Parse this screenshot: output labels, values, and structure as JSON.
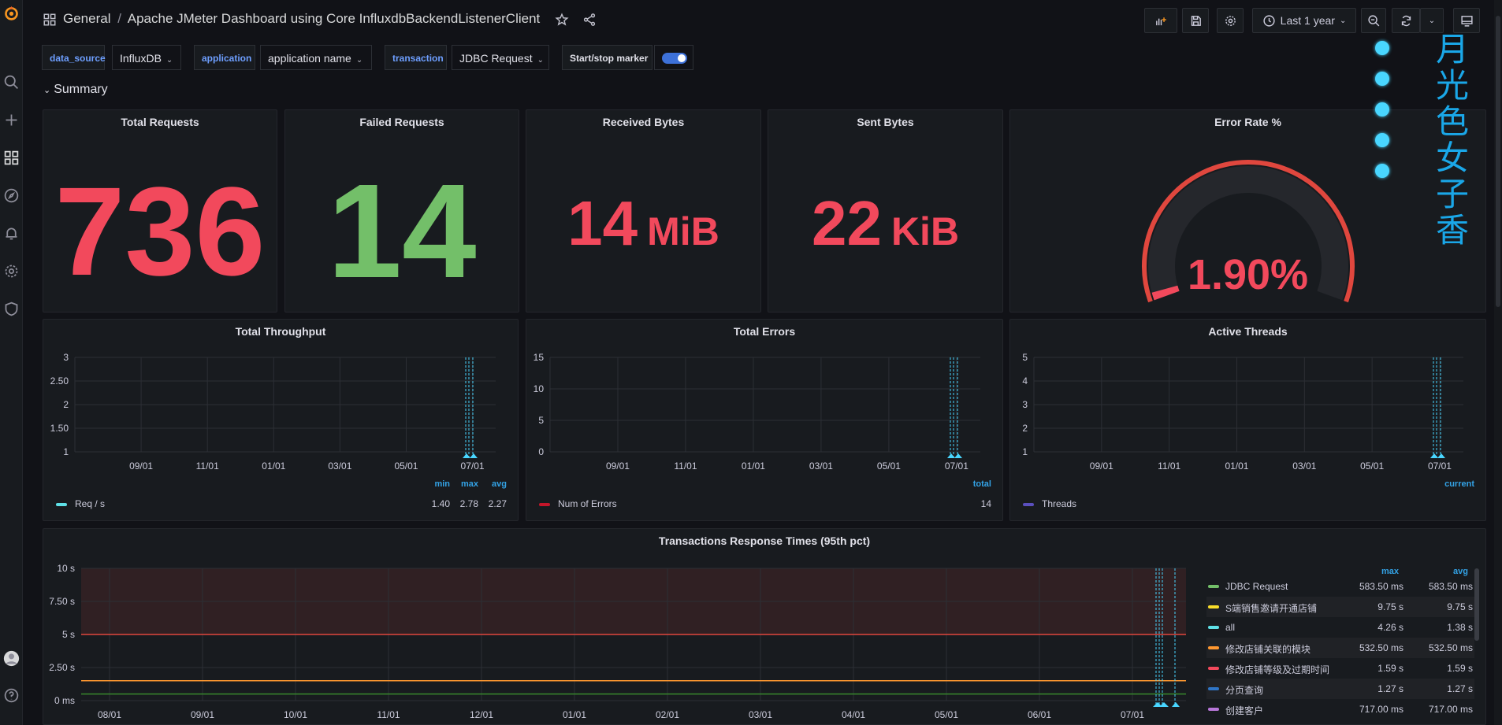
{
  "breadcrumb": {
    "folder": "General",
    "separator": "/",
    "dashboard": "Apache JMeter Dashboard using Core InfluxdbBackendListenerClient"
  },
  "toolbar": {
    "time_range": "Last 1 year"
  },
  "variables": [
    {
      "label": "data_source",
      "value": "InfluxDB"
    },
    {
      "label": "application",
      "value": "application name"
    },
    {
      "label": "transaction",
      "value": "JDBC Request"
    }
  ],
  "marker": {
    "label": "Start/stop marker",
    "enabled": true
  },
  "row": {
    "title": "Summary"
  },
  "stats": [
    {
      "title": "Total Requests",
      "value": "736",
      "unit": "",
      "color": "#f2495c"
    },
    {
      "title": "Failed Requests",
      "value": "14",
      "unit": "",
      "color": "#73bf69"
    },
    {
      "title": "Received Bytes",
      "value": "14",
      "unit": "MiB",
      "color": "#f2495c"
    },
    {
      "title": "Sent Bytes",
      "value": "22",
      "unit": "KiB",
      "color": "#f2495c"
    }
  ],
  "gauge": {
    "title": "Error Rate %",
    "value": "1.90%",
    "fraction": 0.019,
    "color": "#e0473e"
  },
  "decoration": {
    "text": "月光色 女子香",
    "color": "#1aa7e8"
  },
  "chart_data": [
    {
      "type": "line",
      "title": "Total Throughput",
      "x_ticks": [
        "09/01",
        "11/01",
        "01/01",
        "03/01",
        "05/01",
        "07/01"
      ],
      "y_ticks": [
        "3",
        "2.50",
        "2",
        "1.50",
        "1"
      ],
      "ylim": [
        1,
        3
      ],
      "legend_headers": [
        "min",
        "max",
        "avg"
      ],
      "series": [
        {
          "name": "Req / s",
          "color": "#5ee0e6",
          "stats": [
            "1.40",
            "2.78",
            "2.27"
          ]
        }
      ]
    },
    {
      "type": "line",
      "title": "Total Errors",
      "x_ticks": [
        "09/01",
        "11/01",
        "01/01",
        "03/01",
        "05/01",
        "07/01"
      ],
      "y_ticks": [
        "15",
        "10",
        "5",
        "0"
      ],
      "ylim": [
        0,
        15
      ],
      "legend_headers": [
        "total"
      ],
      "series": [
        {
          "name": "Num of Errors",
          "color": "#c4162a",
          "stats": [
            "14"
          ]
        }
      ]
    },
    {
      "type": "line",
      "title": "Active Threads",
      "x_ticks": [
        "09/01",
        "11/01",
        "01/01",
        "03/01",
        "05/01",
        "07/01"
      ],
      "y_ticks": [
        "5",
        "4",
        "3",
        "2",
        "1"
      ],
      "ylim": [
        1,
        5
      ],
      "legend_headers": [
        "current"
      ],
      "series": [
        {
          "name": "Threads",
          "color": "#5a4fbd",
          "stats": [
            ""
          ]
        }
      ]
    },
    {
      "type": "line",
      "title": "Transactions Response Times (95th pct)",
      "x_ticks": [
        "08/01",
        "09/01",
        "10/01",
        "11/01",
        "12/01",
        "01/01",
        "02/01",
        "03/01",
        "04/01",
        "05/01",
        "06/01",
        "07/01"
      ],
      "y_ticks": [
        "10 s",
        "7.50 s",
        "5 s",
        "2.50 s",
        "0 ms"
      ],
      "ylim": [
        0,
        10
      ],
      "thresholds": [
        {
          "value": 5,
          "color": "#e0473e"
        },
        {
          "value": 1.5,
          "color": "#ff9830"
        },
        {
          "value": 0.5,
          "color": "#37872d"
        }
      ],
      "legend_headers": [
        "max",
        "avg"
      ],
      "series": [
        {
          "name": "JDBC Request",
          "color": "#73bf69",
          "max": "583.50 ms",
          "avg": "583.50 ms"
        },
        {
          "name": "S端销售邀请开通店铺",
          "color": "#fade2a",
          "max": "9.75 s",
          "avg": "9.75 s"
        },
        {
          "name": "all",
          "color": "#5ee0e6",
          "max": "4.26 s",
          "avg": "1.38 s"
        },
        {
          "name": "修改店铺关联的模块",
          "color": "#ff9830",
          "max": "532.50 ms",
          "avg": "532.50 ms"
        },
        {
          "name": "修改店铺等级及过期时间",
          "color": "#f2495c",
          "max": "1.59 s",
          "avg": "1.59 s"
        },
        {
          "name": "分页查询",
          "color": "#2f75c6",
          "max": "1.27 s",
          "avg": "1.27 s"
        },
        {
          "name": "创建客户",
          "color": "#b877d9",
          "max": "717.00 ms",
          "avg": "717.00 ms"
        }
      ]
    }
  ]
}
